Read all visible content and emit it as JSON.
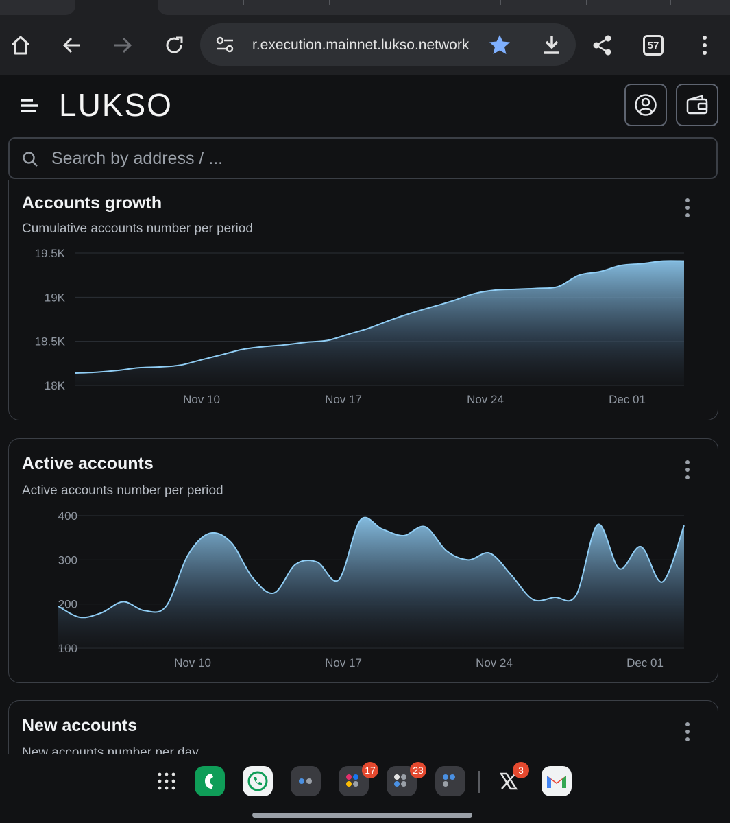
{
  "browser": {
    "url": "r.execution.mainnet.lukso.network",
    "tab_count": "57"
  },
  "app": {
    "logo_text": "LUKSO",
    "search_placeholder": "Search by address / ..."
  },
  "colors": {
    "background": "#111214",
    "card_border": "#3b3f46",
    "series_line": "#90cdf4",
    "bookmark_star": "#7fb0ff"
  },
  "cards": [
    {
      "title": "Accounts growth",
      "subtitle": "Cumulative accounts number per period"
    },
    {
      "title": "Active accounts",
      "subtitle": "Active accounts number per period"
    },
    {
      "title": "New accounts",
      "subtitle": "New accounts number per day"
    }
  ],
  "chart_data": [
    {
      "type": "area",
      "title": "Accounts growth",
      "subtitle": "Cumulative accounts number per period",
      "xlabel": "",
      "ylabel": "",
      "x_ticks": [
        "Nov 10",
        "Nov 17",
        "Nov 24",
        "Dec 01"
      ],
      "y_ticks": [
        "18K",
        "18.5K",
        "19K",
        "19.5K"
      ],
      "ylim": [
        18000,
        19500
      ],
      "grid": true,
      "x": [
        "Nov 04",
        "Nov 05",
        "Nov 06",
        "Nov 07",
        "Nov 08",
        "Nov 09",
        "Nov 10",
        "Nov 11",
        "Nov 12",
        "Nov 13",
        "Nov 14",
        "Nov 15",
        "Nov 16",
        "Nov 17",
        "Nov 18",
        "Nov 19",
        "Nov 20",
        "Nov 21",
        "Nov 22",
        "Nov 23",
        "Nov 24",
        "Nov 25",
        "Nov 26",
        "Nov 27",
        "Nov 28",
        "Nov 29",
        "Nov 30",
        "Dec 01",
        "Dec 02",
        "Dec 03"
      ],
      "values": [
        18140,
        18150,
        18170,
        18200,
        18210,
        18230,
        18290,
        18350,
        18410,
        18440,
        18460,
        18490,
        18510,
        18580,
        18650,
        18740,
        18820,
        18890,
        18960,
        19040,
        19080,
        19090,
        19100,
        19120,
        19250,
        19290,
        19360,
        19380,
        19410,
        19410
      ]
    },
    {
      "type": "area",
      "title": "Active accounts",
      "subtitle": "Active accounts number per period",
      "xlabel": "",
      "ylabel": "",
      "x_ticks": [
        "Nov 10",
        "Nov 17",
        "Nov 24",
        "Dec 01"
      ],
      "y_ticks": [
        "100",
        "200",
        "300",
        "400"
      ],
      "ylim": [
        100,
        400
      ],
      "grid": true,
      "x": [
        "Nov 04",
        "Nov 05",
        "Nov 06",
        "Nov 07",
        "Nov 08",
        "Nov 09",
        "Nov 10",
        "Nov 11",
        "Nov 12",
        "Nov 13",
        "Nov 14",
        "Nov 15",
        "Nov 16",
        "Nov 17",
        "Nov 18",
        "Nov 19",
        "Nov 20",
        "Nov 21",
        "Nov 22",
        "Nov 23",
        "Nov 24",
        "Nov 25",
        "Nov 26",
        "Nov 27",
        "Nov 28",
        "Nov 29",
        "Nov 30",
        "Dec 01",
        "Dec 02",
        "Dec 03"
      ],
      "values": [
        195,
        170,
        180,
        205,
        185,
        195,
        310,
        360,
        340,
        260,
        225,
        290,
        295,
        255,
        390,
        370,
        355,
        375,
        320,
        300,
        315,
        265,
        210,
        215,
        220,
        380,
        280,
        330,
        250,
        378
      ]
    }
  ],
  "dock": {
    "badges": {
      "folder_a": "17",
      "folder_b": "23",
      "x_app": "3"
    }
  }
}
